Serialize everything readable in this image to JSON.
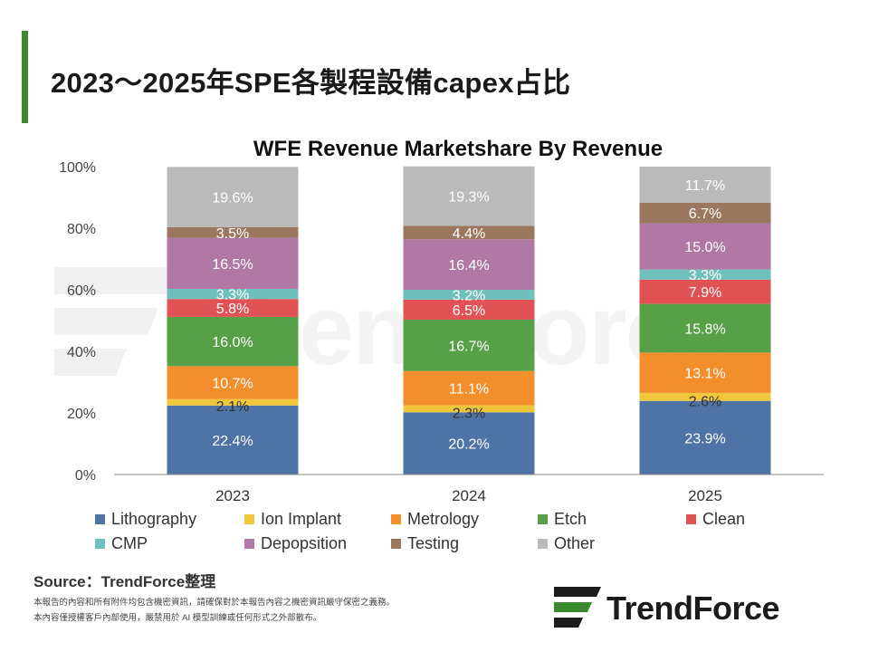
{
  "page": {
    "title": "2023～2025年SPE各製程設備capex占比",
    "source": "Source：TrendForce整理",
    "disclaimer_line1": "本報告的內容和所有附件均包含機密資訊，請確保對於本報告內容之機密資訊嚴守保密之義務。",
    "disclaimer_line2": "本內容僅授權客戶內部使用，嚴禁用於 AI 模型訓練或任何形式之外部散布。",
    "logo_text": "TrendForce",
    "watermark_text": "TrendForce"
  },
  "colors": {
    "accent": "#3a8a2f",
    "series": [
      "#4e74a6",
      "#f0c63c",
      "#f28e2b",
      "#57a047",
      "#e15255",
      "#6fc0bd",
      "#b178a6",
      "#9c775f",
      "#bababa"
    ]
  },
  "chart_data": {
    "type": "bar",
    "stacked": true,
    "title": "WFE Revenue Marketshare By Revenue",
    "categories": [
      "2023",
      "2024",
      "2025"
    ],
    "ylim": [
      0,
      100
    ],
    "yticks": [
      "0%",
      "20%",
      "40%",
      "60%",
      "80%",
      "100%"
    ],
    "legend_position": "bottom",
    "series": [
      {
        "name": "Lithography",
        "values": [
          22.4,
          20.2,
          23.9
        ],
        "labels": [
          "22.4%",
          "20.2%",
          "23.9%"
        ]
      },
      {
        "name": "Ion Implant",
        "values": [
          2.1,
          2.3,
          2.6
        ],
        "labels": [
          "2.1%",
          "2.3%",
          "2.6%"
        ]
      },
      {
        "name": "Metrology",
        "values": [
          10.7,
          11.1,
          13.1
        ],
        "labels": [
          "10.7%",
          "11.1%",
          "13.1%"
        ]
      },
      {
        "name": "Etch",
        "values": [
          16.0,
          16.7,
          15.8
        ],
        "labels": [
          "16.0%",
          "16.7%",
          "15.8%"
        ]
      },
      {
        "name": "Clean",
        "values": [
          5.8,
          6.5,
          7.9
        ],
        "labels": [
          "5.8%",
          "6.5%",
          "7.9%"
        ]
      },
      {
        "name": "CMP",
        "values": [
          3.3,
          3.2,
          3.3
        ],
        "labels": [
          "3.3%",
          "3.2%",
          "3.3%"
        ]
      },
      {
        "name": "Depopsition",
        "values": [
          16.5,
          16.4,
          15.0
        ],
        "labels": [
          "16.5%",
          "16.4%",
          "15.0%"
        ]
      },
      {
        "name": "Testing",
        "values": [
          3.5,
          4.4,
          6.7
        ],
        "labels": [
          "3.5%",
          "4.4%",
          "6.7%"
        ]
      },
      {
        "name": "Other",
        "values": [
          19.6,
          19.3,
          11.7
        ],
        "labels": [
          "19.6%",
          "19.3%",
          "11.7%"
        ]
      }
    ]
  }
}
